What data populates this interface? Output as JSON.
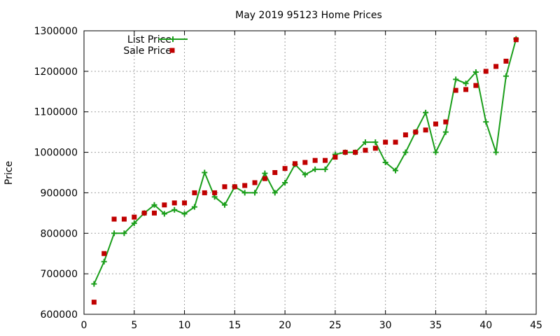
{
  "chart_data": {
    "type": "line",
    "title": "May 2019 95123 Home Prices",
    "xlabel": "",
    "ylabel": "Price",
    "xlim": [
      0,
      45
    ],
    "ylim": [
      600000,
      1300000
    ],
    "x_ticks": [
      0,
      5,
      10,
      15,
      20,
      25,
      30,
      35,
      40,
      45
    ],
    "y_ticks": [
      600000,
      700000,
      800000,
      900000,
      1000000,
      1100000,
      1200000,
      1300000
    ],
    "grid": true,
    "legend_position": "top-left",
    "series": [
      {
        "name": "List Price",
        "style": "line-with-plus-markers",
        "color": "#1a9e1a",
        "points": [
          [
            1,
            675000
          ],
          [
            2,
            730000
          ],
          [
            3,
            800000
          ],
          [
            4,
            800000
          ],
          [
            5,
            825000
          ],
          [
            6,
            850000
          ],
          [
            7,
            870000
          ],
          [
            8,
            848000
          ],
          [
            9,
            858000
          ],
          [
            10,
            848000
          ],
          [
            11,
            865000
          ],
          [
            12,
            950000
          ],
          [
            13,
            890000
          ],
          [
            14,
            870000
          ],
          [
            15,
            915000
          ],
          [
            16,
            900000
          ],
          [
            17,
            900000
          ],
          [
            18,
            948000
          ],
          [
            19,
            900000
          ],
          [
            20,
            925000
          ],
          [
            21,
            970000
          ],
          [
            22,
            945000
          ],
          [
            23,
            958000
          ],
          [
            24,
            958000
          ],
          [
            25,
            995000
          ],
          [
            26,
            1000000
          ],
          [
            27,
            1000000
          ],
          [
            28,
            1025000
          ],
          [
            29,
            1025000
          ],
          [
            30,
            975000
          ],
          [
            31,
            955000
          ],
          [
            32,
            1000000
          ],
          [
            33,
            1050000
          ],
          [
            34,
            1098000
          ],
          [
            35,
            1000000
          ],
          [
            36,
            1050000
          ],
          [
            37,
            1180000
          ],
          [
            38,
            1170000
          ],
          [
            39,
            1198000
          ],
          [
            40,
            1075000
          ],
          [
            41,
            1000000
          ],
          [
            42,
            1188000
          ],
          [
            43,
            1280000
          ]
        ]
      },
      {
        "name": "Sale Price",
        "style": "square-markers",
        "color": "#c00000",
        "points": [
          [
            1,
            630000
          ],
          [
            2,
            750000
          ],
          [
            3,
            835000
          ],
          [
            4,
            835000
          ],
          [
            5,
            840000
          ],
          [
            6,
            850000
          ],
          [
            7,
            850000
          ],
          [
            8,
            870000
          ],
          [
            9,
            875000
          ],
          [
            10,
            875000
          ],
          [
            11,
            900000
          ],
          [
            12,
            900000
          ],
          [
            13,
            900000
          ],
          [
            14,
            915000
          ],
          [
            15,
            915000
          ],
          [
            16,
            918000
          ],
          [
            17,
            925000
          ],
          [
            18,
            935000
          ],
          [
            19,
            950000
          ],
          [
            20,
            960000
          ],
          [
            21,
            972000
          ],
          [
            22,
            975000
          ],
          [
            23,
            980000
          ],
          [
            24,
            980000
          ],
          [
            25,
            988000
          ],
          [
            26,
            1000000
          ],
          [
            27,
            1000000
          ],
          [
            28,
            1005000
          ],
          [
            29,
            1010000
          ],
          [
            30,
            1025000
          ],
          [
            31,
            1025000
          ],
          [
            32,
            1043000
          ],
          [
            33,
            1050000
          ],
          [
            34,
            1055000
          ],
          [
            35,
            1070000
          ],
          [
            36,
            1075000
          ],
          [
            37,
            1153000
          ],
          [
            38,
            1155000
          ],
          [
            39,
            1165000
          ],
          [
            40,
            1200000
          ],
          [
            41,
            1212000
          ],
          [
            42,
            1225000
          ],
          [
            43,
            1278000
          ]
        ]
      }
    ]
  }
}
